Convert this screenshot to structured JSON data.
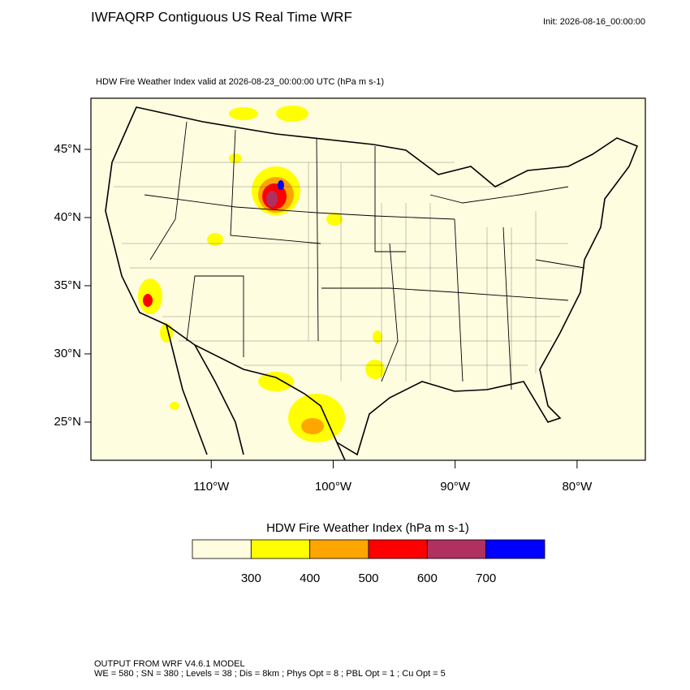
{
  "header": {
    "title": "IWFAQRP Contiguous US Real Time WRF",
    "init": "Init: 2026-08-16_00:00:00"
  },
  "map": {
    "subtitle": "HDW Fire Weather Index valid at 2026-08-23_00:00:00 UTC   (hPa m s-1)",
    "xlim": [
      -119.87,
      -74.4
    ],
    "ylim": [
      22.2,
      48.75
    ],
    "yticks": [
      {
        "value": 45,
        "label": "45°N"
      },
      {
        "value": 40,
        "label": "40°N"
      },
      {
        "value": 35,
        "label": "35°N"
      },
      {
        "value": 30,
        "label": "30°N"
      },
      {
        "value": 25,
        "label": "25°N"
      }
    ],
    "xticks": [
      {
        "value": -110,
        "label": "110°W"
      },
      {
        "value": -100,
        "label": "100°W"
      },
      {
        "value": -90,
        "label": "90°W"
      },
      {
        "value": -80,
        "label": "80°W"
      }
    ]
  },
  "colorbar": {
    "title": "HDW Fire Weather Index (hPa m s-1)",
    "levels": [
      300,
      400,
      500,
      600,
      700
    ],
    "colors": [
      "#fffde0",
      "#ffff00",
      "#ffa500",
      "#ff0000",
      "#b03060",
      "#0000ff"
    ]
  },
  "footer": {
    "line1": "OUTPUT FROM WRF V4.6.1 MODEL",
    "line2": "WE = 580 ; SN = 380 ; Levels = 38 ; Dis = 8km ; Phys Opt = 8 ; PBL Opt = 1 ; Cu Opt = 5"
  }
}
